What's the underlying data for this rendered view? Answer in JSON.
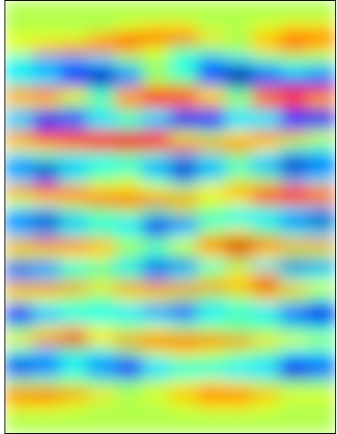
{
  "chart_data": {
    "type": "heatmap",
    "color": "jet",
    "tick_labels": false,
    "color_range": [
      -1,
      1
    ],
    "cells": [
      [
        0.1,
        0.1,
        0.1,
        0.1,
        0.1,
        0.1,
        0.1,
        0.1,
        0.1,
        0.1,
        0.1,
        0.1
      ],
      [
        0.1,
        0.1,
        0.1,
        0.1,
        0.1,
        0.1,
        0.1,
        0.1,
        0.1,
        0.1,
        0.1,
        0.1
      ],
      [
        0.1,
        0.1,
        0.1,
        0.1,
        0.2,
        0.3,
        0.3,
        0.1,
        0.1,
        0.2,
        0.3,
        0.3
      ],
      [
        0.2,
        0.2,
        0.2,
        0.4,
        0.7,
        0.7,
        0.6,
        0.3,
        0.1,
        0.4,
        0.7,
        0.6
      ],
      [
        0.2,
        0.4,
        0.5,
        0.5,
        0.4,
        0.2,
        0.0,
        0.0,
        0.1,
        0.3,
        0.4,
        0.3
      ],
      [
        -0.2,
        -0.4,
        -0.4,
        -0.3,
        0.0,
        0.1,
        -0.2,
        -0.4,
        -0.3,
        -0.1,
        0.0,
        0.0
      ],
      [
        -0.3,
        -0.4,
        -0.7,
        -0.8,
        -0.4,
        0.0,
        -0.2,
        -0.7,
        -0.9,
        -0.5,
        -0.3,
        -0.4
      ],
      [
        -0.2,
        -0.3,
        -0.6,
        -0.9,
        -0.5,
        0.1,
        0.0,
        -0.5,
        -0.9,
        -0.6,
        -0.6,
        -0.6
      ],
      [
        0.5,
        0.7,
        0.3,
        -0.2,
        0.4,
        0.7,
        0.7,
        0.3,
        -0.1,
        0.5,
        0.7,
        0.6
      ],
      [
        0.3,
        0.3,
        0.1,
        0.0,
        0.5,
        0.6,
        0.5,
        0.4,
        0.1,
        0.6,
        0.6,
        0.4
      ],
      [
        -0.4,
        -0.8,
        -0.7,
        -0.3,
        -0.1,
        -0.3,
        -0.6,
        -0.6,
        -0.3,
        -0.3,
        -0.7,
        -0.8
      ],
      [
        -0.3,
        -0.6,
        -0.5,
        -0.3,
        -0.2,
        -0.4,
        -0.8,
        -0.7,
        -0.3,
        -0.3,
        -0.6,
        -0.6
      ],
      [
        0.5,
        0.7,
        0.7,
        0.7,
        0.8,
        0.6,
        0.2,
        0.1,
        0.3,
        0.5,
        0.4,
        0.2
      ],
      [
        0.3,
        0.4,
        0.5,
        0.6,
        0.7,
        0.7,
        0.6,
        0.5,
        0.5,
        0.3,
        0.0,
        -0.1
      ],
      [
        -0.3,
        -0.2,
        -0.2,
        -0.2,
        -0.1,
        -0.2,
        -0.4,
        -0.2,
        0.0,
        -0.3,
        -0.5,
        -0.4
      ],
      [
        -0.6,
        -0.9,
        -0.4,
        -0.2,
        -0.2,
        -0.5,
        -0.9,
        -0.5,
        -0.2,
        -0.4,
        -0.9,
        -0.6
      ],
      [
        -0.3,
        -0.5,
        -0.2,
        0.0,
        0.1,
        -0.2,
        -0.5,
        -0.2,
        0.1,
        0.0,
        -0.4,
        -0.3
      ],
      [
        0.5,
        0.7,
        0.5,
        0.3,
        0.3,
        0.2,
        0.1,
        0.3,
        0.4,
        0.5,
        0.6,
        0.5
      ],
      [
        0.2,
        0.3,
        0.4,
        0.6,
        0.7,
        0.6,
        0.5,
        0.2,
        0.3,
        0.6,
        0.7,
        0.5
      ],
      [
        -0.3,
        -0.4,
        -0.1,
        0.0,
        0.1,
        -0.1,
        0.1,
        0.0,
        -0.2,
        -0.2,
        -0.3,
        -0.4
      ],
      [
        -0.7,
        -0.9,
        -0.4,
        -0.2,
        -0.3,
        -0.8,
        -0.6,
        -0.2,
        -0.2,
        -0.3,
        -0.6,
        -0.9
      ],
      [
        -0.3,
        -0.4,
        -0.2,
        -0.1,
        -0.2,
        -0.5,
        -0.3,
        0.1,
        0.3,
        0.0,
        -0.2,
        -0.3
      ],
      [
        0.5,
        0.7,
        0.6,
        0.4,
        0.1,
        0.0,
        0.2,
        0.6,
        0.9,
        0.6,
        0.5,
        0.5
      ],
      [
        0.2,
        0.2,
        0.3,
        0.3,
        0.0,
        -0.2,
        0.0,
        0.3,
        0.5,
        0.3,
        0.1,
        0.1
      ],
      [
        -0.8,
        -0.6,
        -0.2,
        -0.1,
        -0.3,
        -0.8,
        -0.6,
        -0.2,
        0.0,
        -0.3,
        -0.8,
        -0.5
      ],
      [
        -0.4,
        -0.3,
        -0.1,
        0.0,
        -0.1,
        -0.4,
        -0.2,
        0.1,
        0.3,
        0.4,
        -0.2,
        -0.2
      ],
      [
        0.5,
        0.6,
        0.5,
        0.3,
        0.5,
        0.6,
        0.6,
        0.5,
        0.4,
        0.8,
        0.4,
        0.2
      ],
      [
        0.2,
        0.2,
        0.1,
        0.0,
        0.2,
        0.2,
        0.1,
        0.0,
        0.1,
        0.3,
        0.1,
        -0.1
      ],
      [
        -0.6,
        -0.3,
        -0.2,
        -0.2,
        -0.3,
        -0.5,
        -0.7,
        -0.3,
        -0.2,
        -0.3,
        -0.5,
        -0.7
      ],
      [
        -0.7,
        -0.4,
        -0.2,
        -0.2,
        -0.2,
        -0.3,
        -0.4,
        -0.2,
        -0.1,
        -0.2,
        -0.5,
        -0.8
      ],
      [
        0.0,
        0.2,
        0.4,
        0.2,
        0.1,
        0.2,
        0.1,
        0.1,
        0.0,
        0.0,
        -0.1,
        -0.2
      ],
      [
        0.3,
        0.6,
        0.8,
        0.3,
        0.5,
        0.7,
        0.7,
        0.6,
        0.5,
        0.3,
        0.2,
        0.1
      ],
      [
        -0.2,
        -0.3,
        -0.1,
        -0.2,
        0.0,
        0.2,
        0.3,
        0.2,
        0.1,
        0.0,
        -0.2,
        -0.2
      ],
      [
        -0.8,
        -0.6,
        -0.3,
        -0.5,
        -0.7,
        -0.3,
        -0.1,
        -0.1,
        -0.2,
        -0.3,
        -0.7,
        -0.6
      ],
      [
        -0.5,
        -0.4,
        -0.2,
        -0.4,
        -0.6,
        -0.3,
        -0.2,
        -0.2,
        -0.3,
        -0.3,
        -0.8,
        -0.5
      ],
      [
        0.1,
        0.1,
        0.1,
        0.0,
        0.0,
        0.1,
        0.2,
        0.3,
        0.2,
        0.1,
        0.0,
        0.0
      ],
      [
        0.6,
        0.7,
        0.5,
        0.3,
        0.1,
        0.2,
        0.4,
        0.6,
        0.6,
        0.4,
        0.2,
        0.2
      ],
      [
        0.3,
        0.3,
        0.2,
        0.1,
        0.1,
        0.1,
        0.2,
        0.3,
        0.3,
        0.2,
        0.1,
        0.1
      ],
      [
        0.1,
        0.1,
        0.1,
        0.1,
        0.1,
        0.1,
        0.1,
        0.1,
        0.1,
        0.1,
        0.1,
        0.1
      ],
      [
        0.1,
        0.1,
        0.1,
        0.1,
        0.1,
        0.1,
        0.1,
        0.1,
        0.1,
        0.1,
        0.1,
        0.1
      ]
    ]
  }
}
